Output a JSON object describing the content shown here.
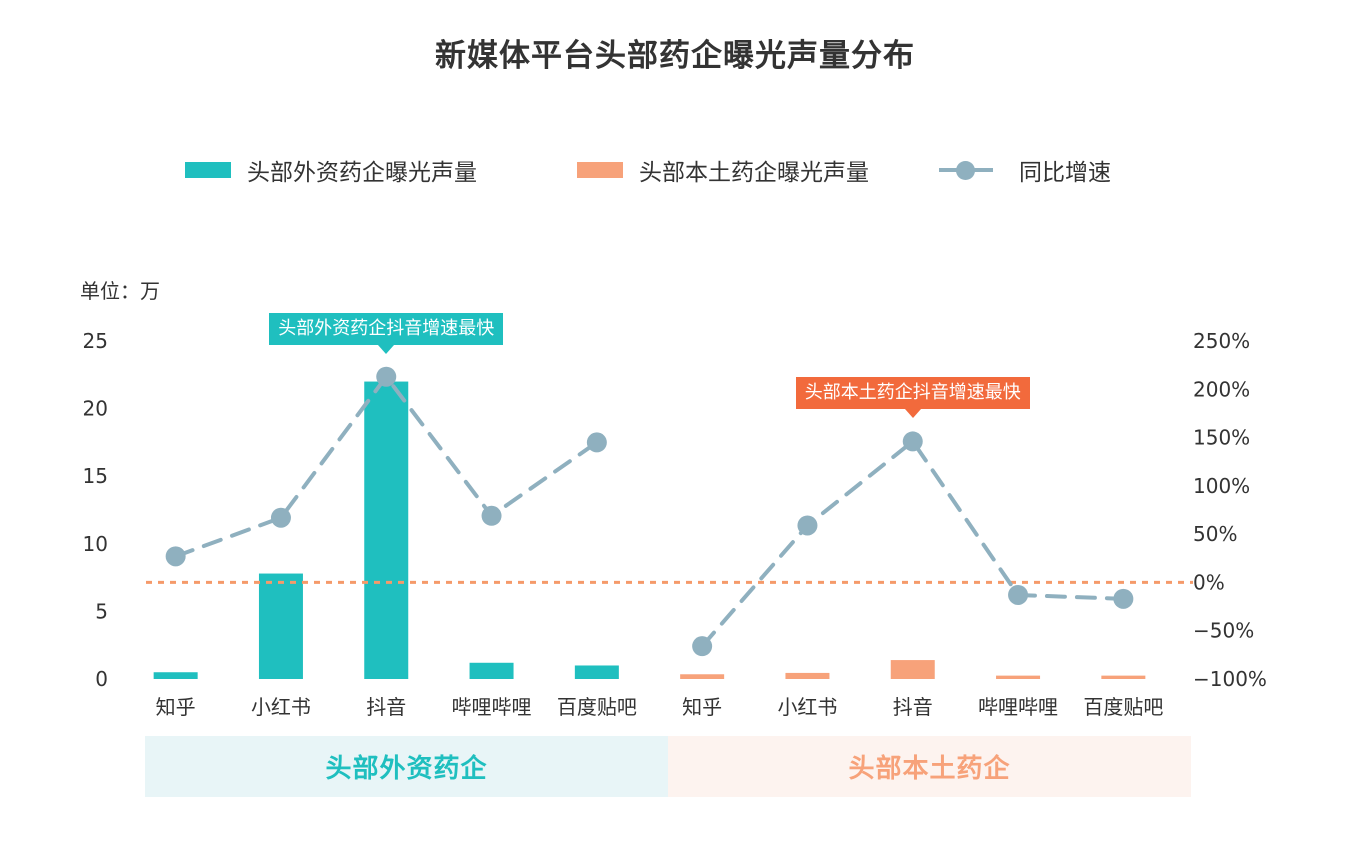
{
  "chart_data": {
    "type": "bar",
    "title": "新媒体平台头部药企曝光声量分布",
    "unit_label": "单位：万",
    "categories": [
      "知乎",
      "小红书",
      "抖音",
      "哔哩哔哩",
      "百度贴吧",
      "知乎",
      "小红书",
      "抖音",
      "哔哩哔哩",
      "百度贴吧"
    ],
    "groups": [
      {
        "label": "头部外资药企",
        "start": 0,
        "end": 4,
        "color": "#1fbfbf",
        "band_color": "#e8f5f7"
      },
      {
        "label": "头部本土药企",
        "start": 5,
        "end": 9,
        "color": "#f7a27a",
        "band_color": "#fdf3ef"
      }
    ],
    "series": [
      {
        "name": "头部外资药企曝光声量",
        "kind": "bar",
        "axis": "left",
        "color": "#1fbfbf",
        "values": [
          0.5,
          7.8,
          22.0,
          1.2,
          1.0,
          null,
          null,
          null,
          null,
          null
        ]
      },
      {
        "name": "头部本土药企曝光声量",
        "kind": "bar",
        "axis": "left",
        "color": "#f7a27a",
        "values": [
          null,
          null,
          null,
          null,
          null,
          0.35,
          0.45,
          1.4,
          0.25,
          0.25
        ]
      },
      {
        "name": "同比增速",
        "kind": "line",
        "axis": "right",
        "color": "#8fb0bf",
        "dashed": true,
        "segments": [
          [
            0,
            4
          ],
          [
            5,
            9
          ]
        ],
        "values": [
          27,
          67,
          213,
          69,
          145,
          -66,
          59,
          146,
          -13,
          -17
        ]
      }
    ],
    "y_left": {
      "min": 0,
      "max": 25,
      "ticks": [
        0,
        5,
        10,
        15,
        20,
        25
      ]
    },
    "y_right": {
      "min": -100,
      "max": 250,
      "ticks": [
        -100,
        -50,
        0,
        50,
        100,
        150,
        200,
        250
      ],
      "tick_suffix": "%"
    },
    "reference_line": {
      "axis": "right",
      "value": 0,
      "color": "#f59a6a",
      "dashed": true
    },
    "annotations": [
      {
        "text": "头部外资药企抖音增速最快",
        "index": 2,
        "color": "#1fbfbf"
      },
      {
        "text": "头部本土药企抖音增速最快",
        "index": 7,
        "color": "#f26a3c"
      }
    ],
    "legend_position": "top",
    "grid": false
  }
}
